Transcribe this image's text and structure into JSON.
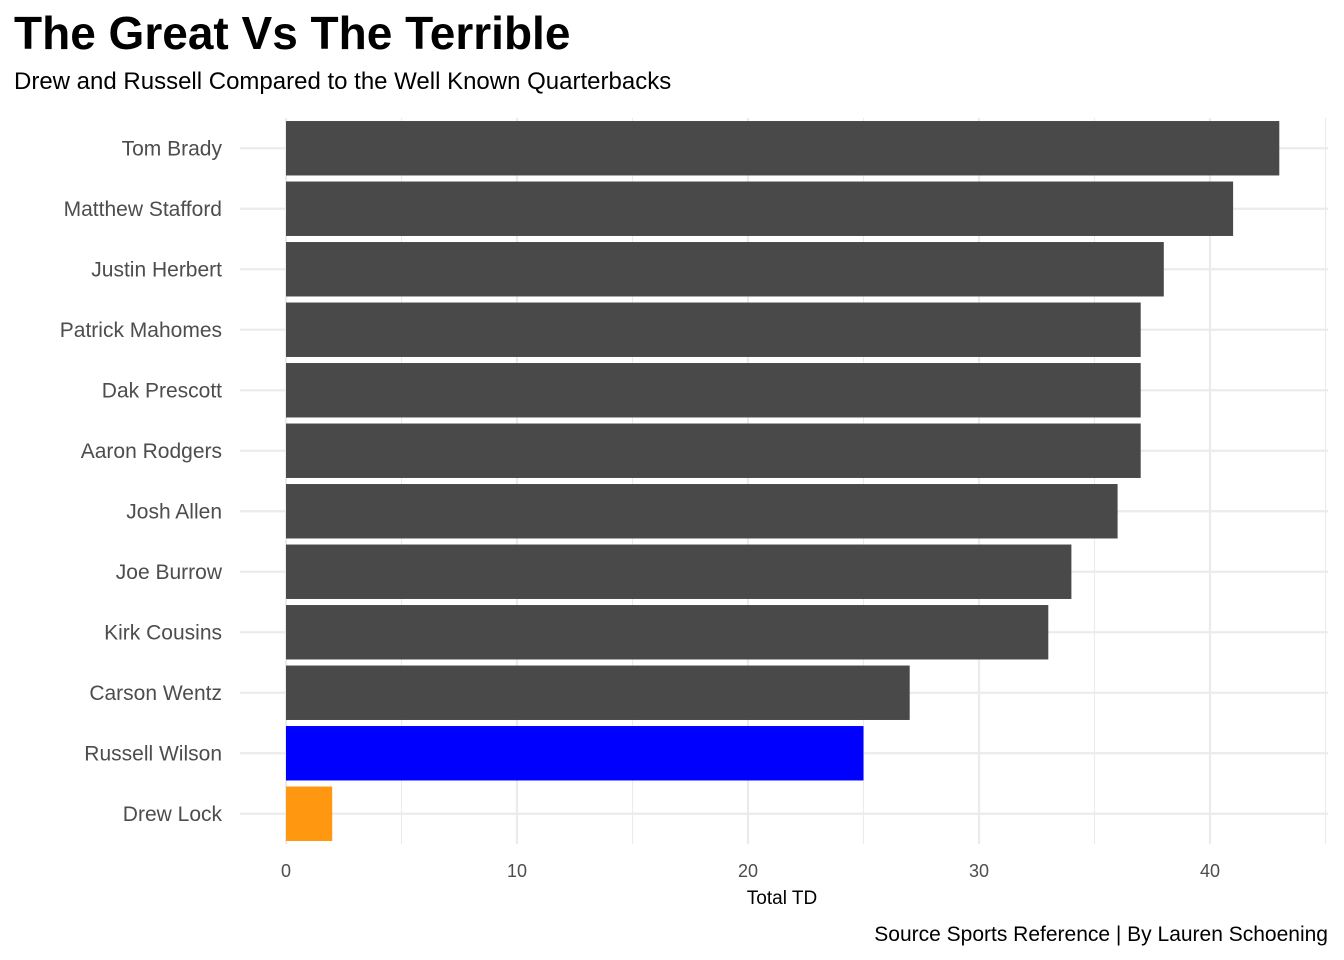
{
  "chart_data": {
    "type": "bar",
    "orientation": "horizontal",
    "title": "The Great Vs The Terrible",
    "subtitle": "Drew and Russell Compared to the Well Known Quarterbacks",
    "xlabel": "Total TD",
    "ylabel": "",
    "caption": "Source Sports Reference | By Lauren Schoening",
    "categories": [
      "Tom Brady",
      "Matthew Stafford",
      "Justin Herbert",
      "Patrick Mahomes",
      "Dak Prescott",
      "Aaron Rodgers",
      "Josh Allen",
      "Joe Burrow",
      "Kirk Cousins",
      "Carson Wentz",
      "Russell Wilson",
      "Drew Lock"
    ],
    "values": [
      43,
      41,
      38,
      37,
      37,
      37,
      36,
      34,
      33,
      27,
      25,
      2
    ],
    "bar_colors": [
      "#494949",
      "#494949",
      "#494949",
      "#494949",
      "#494949",
      "#494949",
      "#494949",
      "#494949",
      "#494949",
      "#494949",
      "#0000ff",
      "#ff9710"
    ],
    "xticks": [
      0,
      10,
      20,
      30,
      40
    ],
    "xlim": [
      0,
      45.2
    ],
    "grid": true,
    "legend": "none",
    "colors": {
      "default_bar": "#494949",
      "highlight_russell": "#0000ff",
      "highlight_drew": "#ff9710",
      "grid": "#ebebeb"
    }
  }
}
